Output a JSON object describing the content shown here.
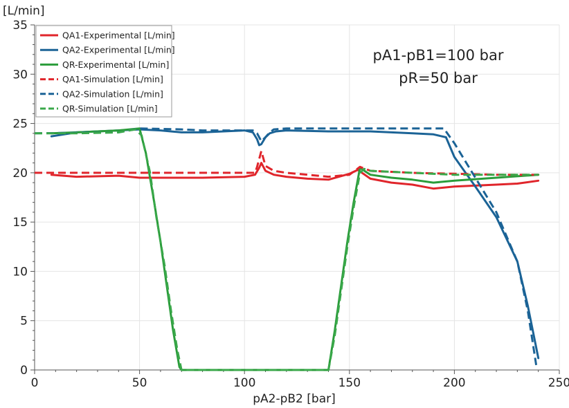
{
  "chart_data": {
    "type": "line",
    "title": "",
    "xlabel": "pA2-pB2 [bar]",
    "ylabel": "[L/min]",
    "xlim": [
      0,
      250
    ],
    "ylim": [
      0,
      35
    ],
    "x_ticks": [
      0,
      50,
      100,
      150,
      200,
      250
    ],
    "y_ticks": [
      0,
      5,
      10,
      15,
      20,
      25,
      30,
      35
    ],
    "grid": true,
    "legend_position": "top-left",
    "annotations": [
      "pA1-pB1=100 bar",
      "pR=50 bar"
    ],
    "series": [
      {
        "name": "QA1-Experimental [L/min]",
        "color": "#e0252b",
        "dash": "solid",
        "x": [
          8,
          20,
          40,
          50,
          60,
          80,
          100,
          105,
          107,
          108,
          110,
          114,
          120,
          130,
          140,
          150,
          154,
          160,
          170,
          180,
          190,
          200,
          210,
          220,
          230,
          240
        ],
        "y": [
          19.8,
          19.6,
          19.7,
          19.5,
          19.5,
          19.5,
          19.6,
          19.8,
          20.5,
          21.0,
          20.2,
          19.8,
          19.6,
          19.4,
          19.3,
          19.9,
          20.3,
          19.4,
          19.0,
          18.8,
          18.4,
          18.6,
          18.7,
          18.8,
          18.9,
          19.2
        ]
      },
      {
        "name": "QA2-Experimental [L/min]",
        "color": "#1b6396",
        "dash": "solid",
        "x": [
          8,
          20,
          40,
          50,
          60,
          70,
          80,
          90,
          100,
          104,
          106,
          107,
          108,
          110,
          112,
          115,
          120,
          140,
          160,
          180,
          190,
          196,
          200,
          210,
          220,
          230,
          235,
          240
        ],
        "y": [
          23.7,
          24.1,
          24.3,
          24.4,
          24.3,
          24.1,
          24.1,
          24.2,
          24.3,
          24.1,
          23.4,
          22.8,
          22.9,
          23.6,
          24.0,
          24.2,
          24.3,
          24.2,
          24.2,
          24.0,
          23.9,
          23.6,
          21.6,
          18.6,
          15.5,
          11.0,
          6.5,
          1.2
        ]
      },
      {
        "name": "QR-Experimental [L/min]",
        "color": "#2a9c3a",
        "dash": "solid",
        "x": [
          8,
          20,
          30,
          40,
          50,
          53,
          57,
          60,
          63,
          66,
          69,
          70,
          80,
          100,
          120,
          140,
          143,
          146,
          149,
          152,
          155,
          160,
          170,
          180,
          190,
          200,
          220,
          240
        ],
        "y": [
          24.0,
          24.1,
          24.2,
          24.3,
          24.5,
          22.0,
          17.0,
          13.0,
          8.5,
          4.0,
          0.3,
          0,
          0,
          0,
          0,
          0,
          4.0,
          8.5,
          13.0,
          17.0,
          20.5,
          19.8,
          19.5,
          19.3,
          19.0,
          19.2,
          19.5,
          19.8
        ]
      },
      {
        "name": "QA1-Simulation [L/min]",
        "color": "#e0252b",
        "dash": "dashed",
        "x": [
          0,
          50,
          100,
          105,
          106,
          108,
          110,
          114,
          120,
          130,
          140,
          150,
          155,
          160,
          180,
          200,
          220,
          240
        ],
        "y": [
          20.0,
          20.0,
          20.0,
          20.0,
          20.6,
          22.2,
          20.7,
          20.2,
          20.0,
          19.8,
          19.6,
          19.8,
          20.6,
          20.2,
          20.0,
          19.9,
          19.8,
          19.8
        ]
      },
      {
        "name": "QA2-Simulation [L/min]",
        "color": "#1b6396",
        "dash": "dashed",
        "x": [
          0,
          40,
          50,
          70,
          80,
          100,
          104,
          106,
          108,
          110,
          112,
          114,
          120,
          150,
          180,
          195,
          200,
          210,
          220,
          230,
          235,
          239
        ],
        "y": [
          24.0,
          24.1,
          24.5,
          24.4,
          24.3,
          24.3,
          24.3,
          24.0,
          23.2,
          23.6,
          24.1,
          24.4,
          24.5,
          24.5,
          24.5,
          24.5,
          23.0,
          19.5,
          16.0,
          11.0,
          6.0,
          0.5
        ]
      },
      {
        "name": "QR-Simulation [L/min]",
        "color": "#3aa84a",
        "dash": "dashed",
        "x": [
          0,
          20,
          40,
          48,
          51,
          55,
          58,
          62,
          65,
          68,
          70,
          80,
          100,
          120,
          140,
          143,
          146,
          149,
          152,
          155,
          157,
          160,
          180,
          200,
          220,
          240
        ],
        "y": [
          24.0,
          24.0,
          24.1,
          24.4,
          23.8,
          20.0,
          15.5,
          10.5,
          6.0,
          2.0,
          0,
          0,
          0,
          0,
          0,
          3.5,
          8.0,
          12.5,
          16.5,
          20.0,
          20.4,
          20.2,
          20.0,
          19.8,
          19.8,
          19.8
        ]
      }
    ]
  }
}
